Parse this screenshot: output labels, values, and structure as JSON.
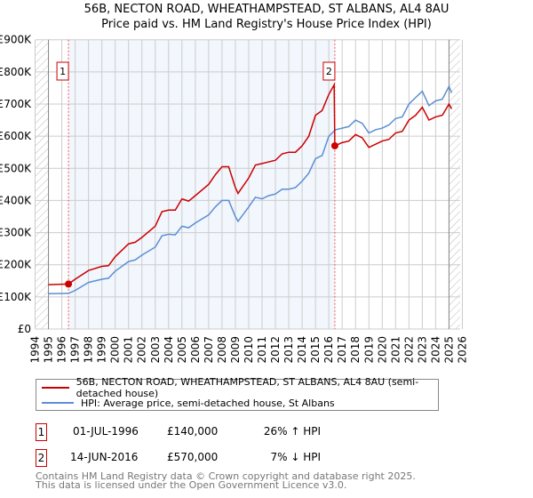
{
  "chart_data": {
    "type": "line",
    "title": "56B, NECTON ROAD, WHEATHAMPSTEAD, ST ALBANS, AL4 8AU",
    "subtitle": "Price paid vs. HM Land Registry's House Price Index (HPI)",
    "xlim": [
      1994,
      2026
    ],
    "ylim": [
      0,
      900000
    ],
    "x_ticks": [
      "1994",
      "1995",
      "1996",
      "1997",
      "1998",
      "1999",
      "2000",
      "2001",
      "2002",
      "2003",
      "2004",
      "2005",
      "2006",
      "2007",
      "2008",
      "2009",
      "2010",
      "2011",
      "2012",
      "2013",
      "2014",
      "2015",
      "2016",
      "2017",
      "2018",
      "2019",
      "2020",
      "2021",
      "2022",
      "2023",
      "2024",
      "2025",
      "2026"
    ],
    "y_ticks": [
      {
        "v": 0,
        "l": "£0"
      },
      {
        "v": 100000,
        "l": "£100K"
      },
      {
        "v": 200000,
        "l": "£200K"
      },
      {
        "v": 300000,
        "l": "£300K"
      },
      {
        "v": 400000,
        "l": "£400K"
      },
      {
        "v": 500000,
        "l": "£500K"
      },
      {
        "v": 600000,
        "l": "£600K"
      },
      {
        "v": 700000,
        "l": "£700K"
      },
      {
        "v": 800000,
        "l": "£800K"
      },
      {
        "v": 900000,
        "l": "£900K"
      }
    ],
    "grid": true,
    "series": [
      {
        "name": "56B, NECTON ROAD, WHEATHAMPSTEAD, ST ALBANS, AL4 8AU (semi-detached house)",
        "color": "#cc0000",
        "x": [
          1995,
          1996.5,
          1997,
          1998,
          1999,
          1999.5,
          2000,
          2001,
          2001.5,
          2002,
          2003,
          2003.5,
          2004,
          2004.5,
          2005,
          2005.5,
          2006,
          2007,
          2007.5,
          2008,
          2008.5,
          2009,
          2009.2,
          2010,
          2010.5,
          2011,
          2011.5,
          2012,
          2012.5,
          2013,
          2013.5,
          2014,
          2014.5,
          2015,
          2015.5,
          2016,
          2016.4,
          2016.45,
          2017,
          2017.5,
          2018,
          2018.5,
          2019,
          2019.5,
          2020,
          2020.5,
          2021,
          2021.5,
          2022,
          2022.5,
          2023,
          2023.5,
          2024,
          2024.5,
          2025,
          2025.2
        ],
        "y": [
          138,
          140,
          155,
          182,
          195,
          197,
          225,
          265,
          270,
          285,
          320,
          365,
          370,
          370,
          405,
          398,
          415,
          450,
          480,
          505,
          505,
          440,
          422,
          470,
          510,
          515,
          520,
          525,
          545,
          550,
          550,
          570,
          600,
          665,
          680,
          730,
          760,
          570,
          580,
          585,
          605,
          595,
          565,
          575,
          585,
          590,
          610,
          615,
          650,
          665,
          690,
          650,
          660,
          665,
          700,
          685
        ]
      },
      {
        "name": "HPI: Average price, semi-detached house, St Albans",
        "color": "#5b8fd4",
        "x": [
          1995,
          1996.5,
          1997,
          1998,
          1999,
          1999.5,
          2000,
          2001,
          2001.5,
          2002,
          2003,
          2003.5,
          2004,
          2004.5,
          2005,
          2005.5,
          2006,
          2007,
          2007.5,
          2008,
          2008.5,
          2009,
          2009.2,
          2010,
          2010.5,
          2011,
          2011.5,
          2012,
          2012.5,
          2013,
          2013.5,
          2014,
          2014.5,
          2015,
          2015.5,
          2016,
          2016.5,
          2017,
          2017.5,
          2018,
          2018.5,
          2019,
          2019.5,
          2020,
          2020.5,
          2021,
          2021.5,
          2022,
          2022.5,
          2023,
          2023.5,
          2024,
          2024.5,
          2025,
          2025.2
        ],
        "y": [
          110,
          111,
          120,
          145,
          155,
          158,
          180,
          210,
          215,
          230,
          255,
          290,
          295,
          293,
          320,
          315,
          330,
          355,
          380,
          400,
          400,
          350,
          335,
          380,
          410,
          405,
          415,
          420,
          435,
          435,
          440,
          460,
          485,
          530,
          540,
          600,
          620,
          625,
          630,
          650,
          640,
          610,
          620,
          625,
          635,
          655,
          660,
          700,
          720,
          740,
          695,
          710,
          715,
          755,
          735
        ]
      }
    ],
    "y_units": "thousands GBP in series y",
    "annotations": [
      {
        "label": "1",
        "x": 1996.5,
        "y": 140
      },
      {
        "label": "2",
        "x": 2016.45,
        "y": 570
      }
    ]
  },
  "transactions": [
    {
      "num": "1",
      "date": "01-JUL-1996",
      "price": "£140,000",
      "hpi": "26% ↑ HPI"
    },
    {
      "num": "2",
      "date": "14-JUN-2016",
      "price": "£570,000",
      "hpi": "7% ↓ HPI"
    }
  ],
  "footer": [
    "Contains HM Land Registry data © Crown copyright and database right 2025.",
    "This data is licensed under the Open Government Licence v3.0."
  ]
}
